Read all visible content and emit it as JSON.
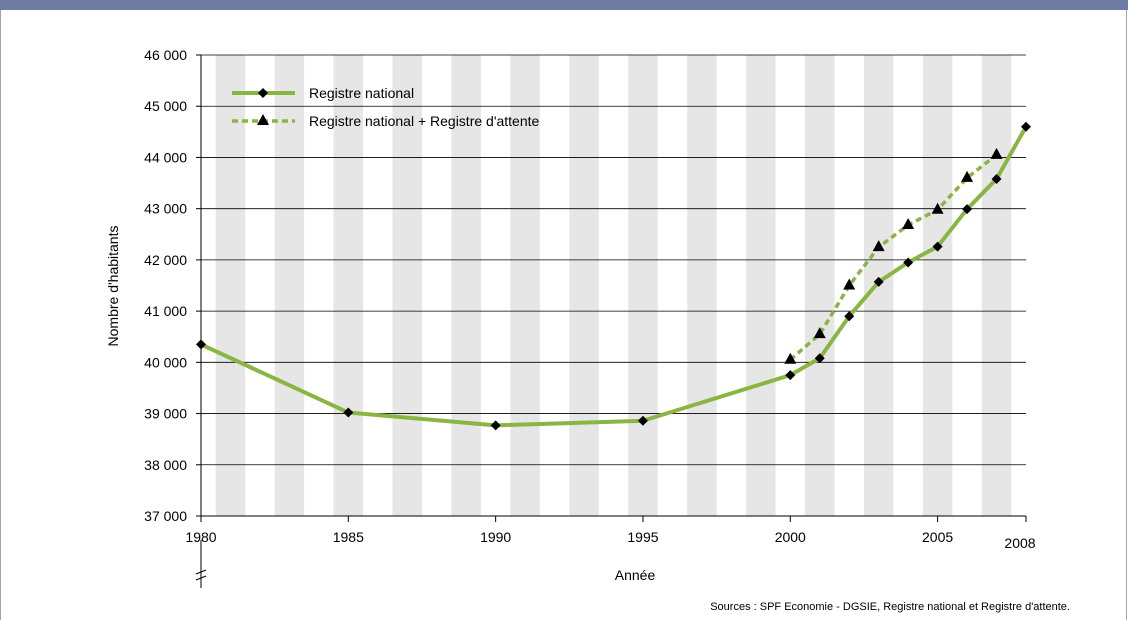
{
  "header": {
    "title": ""
  },
  "source": "Sources : SPF Economie - DGSIE, Registre national et Registre d'attente.",
  "chart_data": {
    "type": "line",
    "xlabel": "Année",
    "ylabel": "Nombre d'habitants",
    "xlim": [
      1980,
      2008
    ],
    "ylim": [
      37000,
      46000
    ],
    "x_ticks": [
      "1980",
      "1985",
      "1990",
      "1995",
      "2000",
      "2005",
      "2008"
    ],
    "x_tick_values": [
      1980,
      1985,
      1990,
      1995,
      2000,
      2005,
      2008
    ],
    "y_ticks": [
      "37 000",
      "38 000",
      "39 000",
      "40 000",
      "41 000",
      "42 000",
      "43 000",
      "44 000",
      "45 000",
      "46 000"
    ],
    "y_tick_values": [
      37000,
      38000,
      39000,
      40000,
      41000,
      42000,
      43000,
      44000,
      45000,
      46000
    ],
    "axis_break": true,
    "grid": "horizontal",
    "legend_position": "top-left",
    "series": [
      {
        "name": "Registre national",
        "style": "solid",
        "marker": "diamond",
        "color": "#8ab543",
        "x": [
          1980,
          1985,
          1990,
          1995,
          2000,
          2001,
          2002,
          2003,
          2004,
          2005,
          2006,
          2007,
          2008
        ],
        "y": [
          40350,
          39020,
          38770,
          38860,
          39750,
          40080,
          40900,
          41570,
          41950,
          42260,
          42990,
          43580,
          44600
        ]
      },
      {
        "name": "Registre national + Registre d'attente",
        "style": "dashed",
        "marker": "triangle",
        "color": "#8ab543",
        "x": [
          2000,
          2001,
          2002,
          2003,
          2004,
          2005,
          2006,
          2007
        ],
        "y": [
          40050,
          40550,
          41500,
          42250,
          42680,
          42980,
          43600,
          44050
        ]
      }
    ]
  }
}
